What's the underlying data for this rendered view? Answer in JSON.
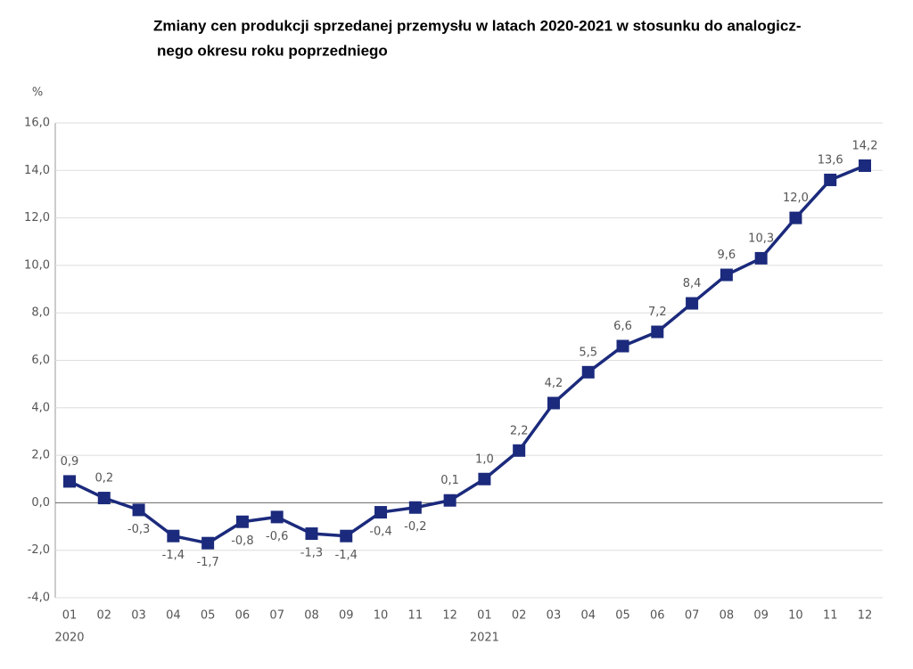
{
  "chart_data": {
    "type": "line",
    "title": [
      "Zmiany cen produkcji sprzedanej przemysłu w latach 2020-2021 w stosunku do analogicz-",
      "nego  okresu roku poprzedniego"
    ],
    "y_label": "%",
    "categories": [
      "01",
      "02",
      "03",
      "04",
      "05",
      "06",
      "07",
      "08",
      "09",
      "10",
      "11",
      "12",
      "01",
      "02",
      "03",
      "04",
      "05",
      "06",
      "07",
      "08",
      "09",
      "10",
      "11",
      "12"
    ],
    "groups": [
      "2020",
      "2021"
    ],
    "series": [
      {
        "name": "Zmiany cen",
        "color": "#1b2a7c",
        "values": [
          0.9,
          0.2,
          -0.3,
          -1.4,
          -1.7,
          -0.8,
          -0.6,
          -1.3,
          -1.4,
          -0.4,
          -0.2,
          0.1,
          1.0,
          2.2,
          4.2,
          5.5,
          6.6,
          7.2,
          8.4,
          9.6,
          10.3,
          12.0,
          13.6,
          14.2
        ],
        "value_labels": [
          "0,9",
          "0,2",
          "-0,3",
          "-1,4",
          "-1,7",
          "-0,8",
          "-0,6",
          "-1,3",
          "-1,4",
          "-0,4",
          "-0,2",
          "0,1",
          "1,0",
          "2,2",
          "4,2",
          "5,5",
          "6,6",
          "7,2",
          "8,4",
          "9,6",
          "10,3",
          "12,0",
          "13,6",
          "14,2"
        ]
      }
    ],
    "ylim": [
      -4,
      16
    ],
    "yticks": [
      {
        "value": -4,
        "label": "-4,0"
      },
      {
        "value": -2,
        "label": "-2,0"
      },
      {
        "value": 0,
        "label": "0,0"
      },
      {
        "value": 2,
        "label": "2,0"
      },
      {
        "value": 4,
        "label": "4,0"
      },
      {
        "value": 6,
        "label": "6,0"
      },
      {
        "value": 8,
        "label": "8,0"
      },
      {
        "value": 10,
        "label": "10,0"
      },
      {
        "value": 12,
        "label": "12,0"
      },
      {
        "value": 14,
        "label": "14,0"
      },
      {
        "value": 16,
        "label": "16,0"
      }
    ],
    "grid": true
  }
}
